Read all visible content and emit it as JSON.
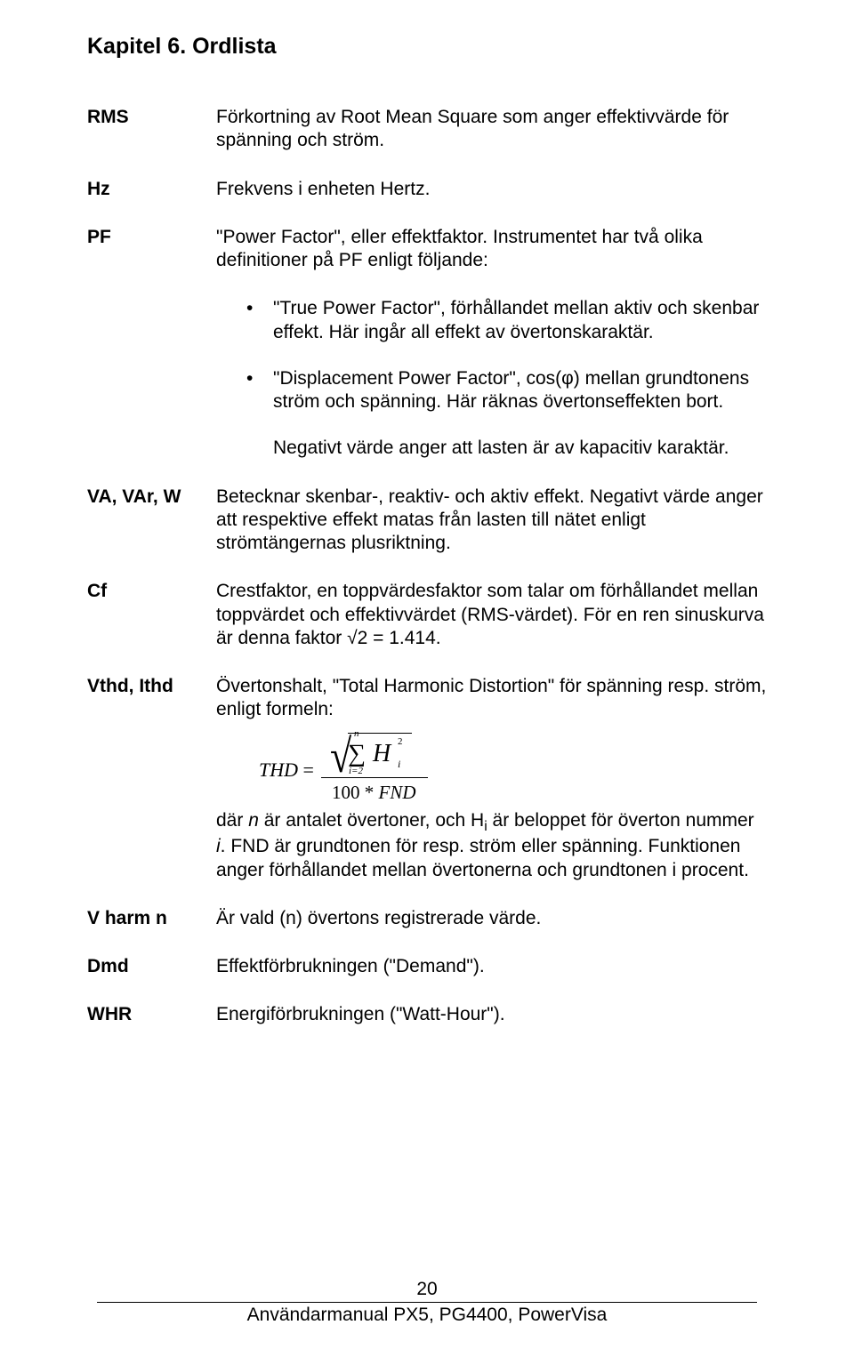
{
  "chapter_title": "Kapitel 6. Ordlista",
  "entries": {
    "rms": {
      "term": "RMS",
      "def": "Förkortning av Root Mean Square som anger effektivvärde för spänning och ström."
    },
    "hz": {
      "term": "Hz",
      "def": "Frekvens i enheten Hertz."
    },
    "pf": {
      "term": "PF",
      "def": "\"Power Factor\", eller effektfaktor. Instrumentet har två olika definitioner på PF enligt följande:"
    },
    "va": {
      "term": "VA, VAr, W",
      "def": "Betecknar skenbar-, reaktiv- och aktiv effekt. Negativt värde anger att respektive effekt matas från lasten till nätet enligt strömtängernas plusriktning."
    },
    "cf": {
      "term": "Cf",
      "def": "Crestfaktor, en toppvärdesfaktor som talar om förhållandet mellan toppvärdet och effektivvärdet (RMS-värdet). För en ren sinuskurva är denna faktor √2 = 1.414."
    },
    "vthd": {
      "term": "Vthd, Ithd",
      "def_pre": "Övertonshalt, \"Total Harmonic Distortion\" för spänning resp. ström, enligt formeln:",
      "def_post_1": "där ",
      "def_post_2": " är antalet övertoner, och H",
      "def_post_3": " är beloppet för överton nummer ",
      "def_post_4": ". FND är grundtonen för resp. ström eller spänning. Funktionen anger förhållandet mellan övertonerna och grundtonen i procent.",
      "n": "n",
      "i": "i"
    },
    "vharm": {
      "term": "V harm n",
      "def": "Är vald (n) övertons registrerade värde."
    },
    "dmd": {
      "term": "Dmd",
      "def": "Effektförbrukningen (\"Demand\")."
    },
    "whr": {
      "term": "WHR",
      "def": "Energiförbrukningen (\"Watt-Hour\")."
    }
  },
  "bullets": {
    "b1": "\"True Power Factor\", förhållandet mellan aktiv och skenbar effekt. Här ingår all effekt av övertonskaraktär.",
    "b2": "\"Displacement Power Factor\", cos(φ) mellan grundtonens ström och spänning. Här räknas övertonseffekten bort."
  },
  "neg_note": "Negativt värde anger att lasten är av kapacitiv karaktär.",
  "formula": {
    "thd": "THD",
    "eq": "=",
    "sigma_top": "n",
    "sigma_bot": "i=2",
    "H": "H",
    "H_sup": "2",
    "H_sub": "i",
    "denom_num": "100",
    "denom_star": "*",
    "denom_fnd": "FND"
  },
  "footer": {
    "page": "20",
    "text": "Användarmanual PX5, PG4400, PowerVisa"
  }
}
